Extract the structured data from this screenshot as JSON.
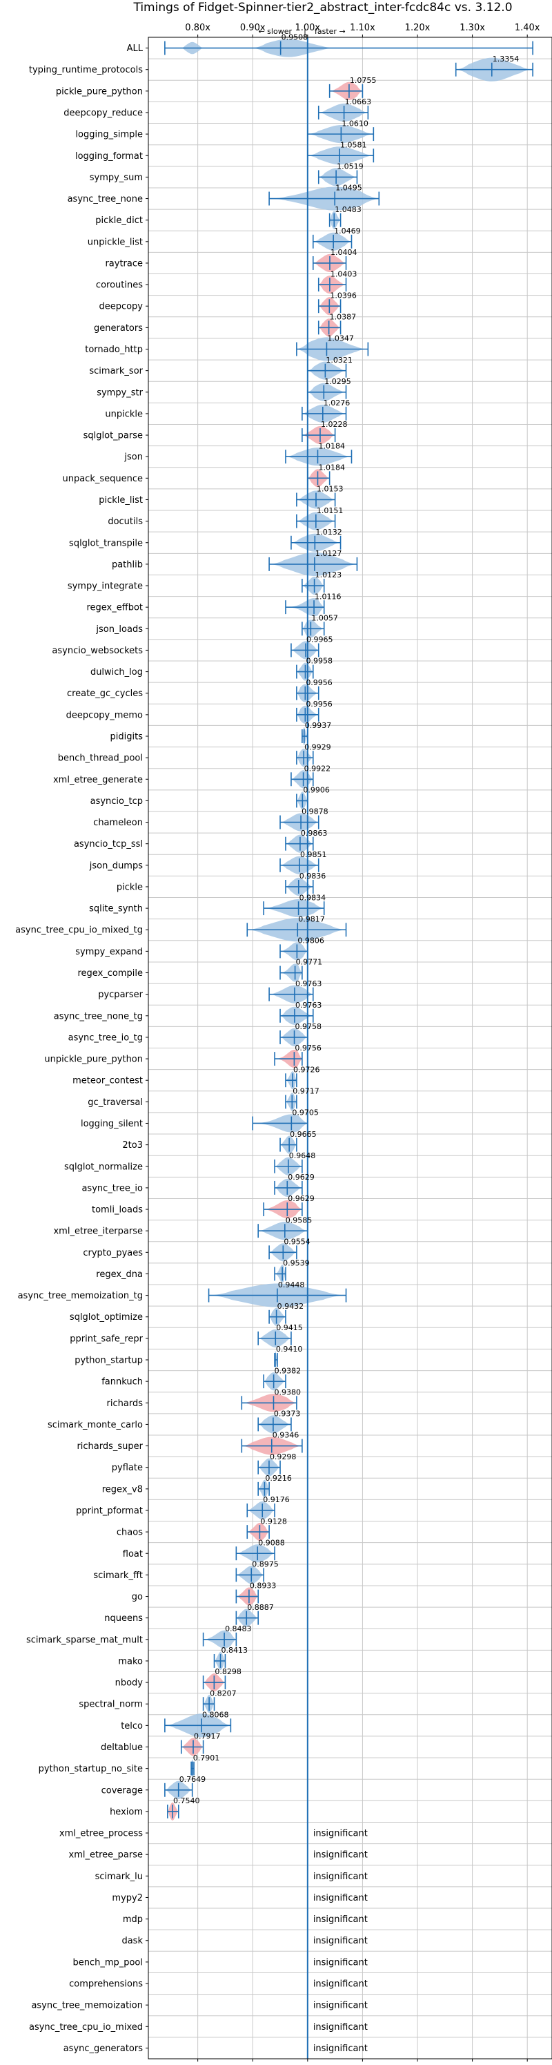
{
  "chart_data": {
    "type": "violin",
    "title": "Timings of Fidget-Spinner-tier2_abstract_inter-fcdc84c vs. 3.12.0",
    "direction_note": {
      "left": "← slower",
      "sep": "|",
      "right": "faster →"
    },
    "x_ticks": [
      "0.80x",
      "0.90x",
      "1.00x",
      "1.10x",
      "1.20x",
      "1.30x",
      "1.40x"
    ],
    "x_tick_values": [
      0.8,
      0.9,
      1.0,
      1.1,
      1.2,
      1.3,
      1.4
    ],
    "xlim": [
      0.71,
      1.445
    ],
    "reference_line": 1.0,
    "grid": true,
    "insignificant_label": "insignificant",
    "colors": {
      "faster": "#a4c5e4",
      "slower": "#f2a8ad",
      "accent": "#1f6fb5",
      "grid": "#c8c8c8"
    },
    "benchmarks": [
      {
        "name": "ALL",
        "value": 0.9508,
        "lo": 0.74,
        "hi": 1.41,
        "sig": "f",
        "shape": "all"
      },
      {
        "name": "typing_runtime_protocols",
        "value": 1.3354,
        "lo": 1.27,
        "hi": 1.41,
        "sig": "f",
        "shape": "wide"
      },
      {
        "name": "pickle_pure_python",
        "value": 1.0755,
        "lo": 1.04,
        "hi": 1.1,
        "sig": "s"
      },
      {
        "name": "deepcopy_reduce",
        "value": 1.0663,
        "lo": 1.02,
        "hi": 1.11,
        "sig": "f"
      },
      {
        "name": "logging_simple",
        "value": 1.061,
        "lo": 1.0,
        "hi": 1.12,
        "sig": "f"
      },
      {
        "name": "logging_format",
        "value": 1.0581,
        "lo": 1.0,
        "hi": 1.12,
        "sig": "f"
      },
      {
        "name": "sympy_sum",
        "value": 1.0519,
        "lo": 1.02,
        "hi": 1.09,
        "sig": "f"
      },
      {
        "name": "async_tree_none",
        "value": 1.0495,
        "lo": 0.93,
        "hi": 1.13,
        "sig": "f",
        "shape": "wide"
      },
      {
        "name": "pickle_dict",
        "value": 1.0483,
        "lo": 1.04,
        "hi": 1.06,
        "sig": "f"
      },
      {
        "name": "unpickle_list",
        "value": 1.0469,
        "lo": 1.01,
        "hi": 1.08,
        "sig": "f"
      },
      {
        "name": "raytrace",
        "value": 1.0404,
        "lo": 1.01,
        "hi": 1.07,
        "sig": "s"
      },
      {
        "name": "coroutines",
        "value": 1.0403,
        "lo": 1.02,
        "hi": 1.07,
        "sig": "s"
      },
      {
        "name": "deepcopy",
        "value": 1.0396,
        "lo": 1.02,
        "hi": 1.06,
        "sig": "s"
      },
      {
        "name": "generators",
        "value": 1.0387,
        "lo": 1.02,
        "hi": 1.06,
        "sig": "s"
      },
      {
        "name": "tornado_http",
        "value": 1.0347,
        "lo": 0.98,
        "hi": 1.11,
        "sig": "f",
        "shape": "wide"
      },
      {
        "name": "scimark_sor",
        "value": 1.0321,
        "lo": 1.0,
        "hi": 1.07,
        "sig": "f"
      },
      {
        "name": "sympy_str",
        "value": 1.0295,
        "lo": 1.0,
        "hi": 1.07,
        "sig": "f"
      },
      {
        "name": "unpickle",
        "value": 1.0276,
        "lo": 0.99,
        "hi": 1.07,
        "sig": "f"
      },
      {
        "name": "sqlglot_parse",
        "value": 1.0228,
        "lo": 0.99,
        "hi": 1.05,
        "sig": "s"
      },
      {
        "name": "json",
        "value": 1.0184,
        "lo": 0.96,
        "hi": 1.08,
        "sig": "f"
      },
      {
        "name": "unpack_sequence",
        "value": 1.0184,
        "lo": 1.0,
        "hi": 1.04,
        "sig": "s"
      },
      {
        "name": "pickle_list",
        "value": 1.0153,
        "lo": 0.98,
        "hi": 1.05,
        "sig": "f"
      },
      {
        "name": "docutils",
        "value": 1.0151,
        "lo": 0.98,
        "hi": 1.05,
        "sig": "f"
      },
      {
        "name": "sqlglot_transpile",
        "value": 1.0132,
        "lo": 0.97,
        "hi": 1.06,
        "sig": "f"
      },
      {
        "name": "pathlib",
        "value": 1.0127,
        "lo": 0.93,
        "hi": 1.09,
        "sig": "f",
        "shape": "wide"
      },
      {
        "name": "sympy_integrate",
        "value": 1.0123,
        "lo": 0.99,
        "hi": 1.03,
        "sig": "f"
      },
      {
        "name": "regex_effbot",
        "value": 1.0116,
        "lo": 0.96,
        "hi": 1.03,
        "sig": "f"
      },
      {
        "name": "json_loads",
        "value": 1.0057,
        "lo": 0.99,
        "hi": 1.03,
        "sig": "f"
      },
      {
        "name": "asyncio_websockets",
        "value": 0.9965,
        "lo": 0.97,
        "hi": 1.02,
        "sig": "f"
      },
      {
        "name": "dulwich_log",
        "value": 0.9958,
        "lo": 0.98,
        "hi": 1.01,
        "sig": "f"
      },
      {
        "name": "create_gc_cycles",
        "value": 0.9956,
        "lo": 0.98,
        "hi": 1.02,
        "sig": "f"
      },
      {
        "name": "deepcopy_memo",
        "value": 0.9956,
        "lo": 0.98,
        "hi": 1.02,
        "sig": "f"
      },
      {
        "name": "pidigits",
        "value": 0.9937,
        "lo": 0.99,
        "hi": 1.0,
        "sig": "f"
      },
      {
        "name": "bench_thread_pool",
        "value": 0.9929,
        "lo": 0.98,
        "hi": 1.01,
        "sig": "f"
      },
      {
        "name": "xml_etree_generate",
        "value": 0.9922,
        "lo": 0.97,
        "hi": 1.01,
        "sig": "f"
      },
      {
        "name": "asyncio_tcp",
        "value": 0.9906,
        "lo": 0.98,
        "hi": 1.0,
        "sig": "f"
      },
      {
        "name": "chameleon",
        "value": 0.9878,
        "lo": 0.95,
        "hi": 1.02,
        "sig": "f"
      },
      {
        "name": "asyncio_tcp_ssl",
        "value": 0.9863,
        "lo": 0.96,
        "hi": 1.01,
        "sig": "f"
      },
      {
        "name": "json_dumps",
        "value": 0.9851,
        "lo": 0.95,
        "hi": 1.02,
        "sig": "f"
      },
      {
        "name": "pickle",
        "value": 0.9836,
        "lo": 0.96,
        "hi": 1.01,
        "sig": "f"
      },
      {
        "name": "sqlite_synth",
        "value": 0.9834,
        "lo": 0.92,
        "hi": 1.03,
        "sig": "f"
      },
      {
        "name": "async_tree_cpu_io_mixed_tg",
        "value": 0.9817,
        "lo": 0.89,
        "hi": 1.07,
        "sig": "f",
        "shape": "wide"
      },
      {
        "name": "sympy_expand",
        "value": 0.9806,
        "lo": 0.95,
        "hi": 1.0,
        "sig": "f"
      },
      {
        "name": "regex_compile",
        "value": 0.9771,
        "lo": 0.95,
        "hi": 0.99,
        "sig": "f"
      },
      {
        "name": "pycparser",
        "value": 0.9763,
        "lo": 0.93,
        "hi": 1.01,
        "sig": "f"
      },
      {
        "name": "async_tree_none_tg",
        "value": 0.9763,
        "lo": 0.95,
        "hi": 1.01,
        "sig": "f"
      },
      {
        "name": "async_tree_io_tg",
        "value": 0.9758,
        "lo": 0.95,
        "hi": 1.0,
        "sig": "f"
      },
      {
        "name": "unpickle_pure_python",
        "value": 0.9756,
        "lo": 0.94,
        "hi": 0.99,
        "sig": "s"
      },
      {
        "name": "meteor_contest",
        "value": 0.9726,
        "lo": 0.96,
        "hi": 0.98,
        "sig": "f"
      },
      {
        "name": "gc_traversal",
        "value": 0.9717,
        "lo": 0.96,
        "hi": 0.98,
        "sig": "f"
      },
      {
        "name": "logging_silent",
        "value": 0.9705,
        "lo": 0.9,
        "hi": 1.0,
        "sig": "f"
      },
      {
        "name": "2to3",
        "value": 0.9665,
        "lo": 0.95,
        "hi": 0.98,
        "sig": "f"
      },
      {
        "name": "sqlglot_normalize",
        "value": 0.9648,
        "lo": 0.94,
        "hi": 0.99,
        "sig": "f"
      },
      {
        "name": "async_tree_io",
        "value": 0.9629,
        "lo": 0.94,
        "hi": 0.99,
        "sig": "f"
      },
      {
        "name": "tomli_loads",
        "value": 0.9629,
        "lo": 0.92,
        "hi": 0.99,
        "sig": "s"
      },
      {
        "name": "xml_etree_iterparse",
        "value": 0.9585,
        "lo": 0.91,
        "hi": 1.0,
        "sig": "f"
      },
      {
        "name": "crypto_pyaes",
        "value": 0.9554,
        "lo": 0.93,
        "hi": 0.98,
        "sig": "f"
      },
      {
        "name": "regex_dna",
        "value": 0.9539,
        "lo": 0.94,
        "hi": 0.96,
        "sig": "f"
      },
      {
        "name": "async_tree_memoization_tg",
        "value": 0.9448,
        "lo": 0.82,
        "hi": 1.07,
        "sig": "f",
        "shape": "wide"
      },
      {
        "name": "sqlglot_optimize",
        "value": 0.9432,
        "lo": 0.93,
        "hi": 0.96,
        "sig": "f"
      },
      {
        "name": "pprint_safe_repr",
        "value": 0.9415,
        "lo": 0.91,
        "hi": 0.97,
        "sig": "f"
      },
      {
        "name": "python_startup",
        "value": 0.941,
        "lo": 0.94,
        "hi": 0.945,
        "sig": "f"
      },
      {
        "name": "fannkuch",
        "value": 0.9382,
        "lo": 0.92,
        "hi": 0.96,
        "sig": "f"
      },
      {
        "name": "richards",
        "value": 0.938,
        "lo": 0.88,
        "hi": 0.98,
        "sig": "s"
      },
      {
        "name": "scimark_monte_carlo",
        "value": 0.9373,
        "lo": 0.91,
        "hi": 0.97,
        "sig": "f"
      },
      {
        "name": "richards_super",
        "value": 0.9346,
        "lo": 0.88,
        "hi": 0.99,
        "sig": "s"
      },
      {
        "name": "pyflate",
        "value": 0.9298,
        "lo": 0.91,
        "hi": 0.95,
        "sig": "f"
      },
      {
        "name": "regex_v8",
        "value": 0.9216,
        "lo": 0.91,
        "hi": 0.93,
        "sig": "f"
      },
      {
        "name": "pprint_pformat",
        "value": 0.9176,
        "lo": 0.89,
        "hi": 0.94,
        "sig": "f"
      },
      {
        "name": "chaos",
        "value": 0.9128,
        "lo": 0.89,
        "hi": 0.93,
        "sig": "s"
      },
      {
        "name": "float",
        "value": 0.9088,
        "lo": 0.87,
        "hi": 0.94,
        "sig": "f"
      },
      {
        "name": "scimark_fft",
        "value": 0.8975,
        "lo": 0.87,
        "hi": 0.92,
        "sig": "f"
      },
      {
        "name": "go",
        "value": 0.8933,
        "lo": 0.87,
        "hi": 0.91,
        "sig": "s"
      },
      {
        "name": "nqueens",
        "value": 0.8887,
        "lo": 0.87,
        "hi": 0.91,
        "sig": "f"
      },
      {
        "name": "scimark_sparse_mat_mult",
        "value": 0.8483,
        "lo": 0.81,
        "hi": 0.87,
        "sig": "f"
      },
      {
        "name": "mako",
        "value": 0.8413,
        "lo": 0.83,
        "hi": 0.85,
        "sig": "f"
      },
      {
        "name": "nbody",
        "value": 0.8298,
        "lo": 0.81,
        "hi": 0.85,
        "sig": "s"
      },
      {
        "name": "spectral_norm",
        "value": 0.8207,
        "lo": 0.81,
        "hi": 0.83,
        "sig": "f"
      },
      {
        "name": "telco",
        "value": 0.8068,
        "lo": 0.74,
        "hi": 0.86,
        "sig": "f",
        "shape": "wide"
      },
      {
        "name": "deltablue",
        "value": 0.7917,
        "lo": 0.77,
        "hi": 0.81,
        "sig": "s"
      },
      {
        "name": "python_startup_no_site",
        "value": 0.7901,
        "lo": 0.788,
        "hi": 0.793,
        "sig": "f"
      },
      {
        "name": "coverage",
        "value": 0.7649,
        "lo": 0.74,
        "hi": 0.79,
        "sig": "f"
      },
      {
        "name": "hexiom",
        "value": 0.754,
        "lo": 0.745,
        "hi": 0.765,
        "sig": "s"
      },
      {
        "name": "xml_etree_process",
        "sig": "i"
      },
      {
        "name": "xml_etree_parse",
        "sig": "i"
      },
      {
        "name": "scimark_lu",
        "sig": "i"
      },
      {
        "name": "mypy2",
        "sig": "i"
      },
      {
        "name": "mdp",
        "sig": "i"
      },
      {
        "name": "dask",
        "sig": "i"
      },
      {
        "name": "bench_mp_pool",
        "sig": "i"
      },
      {
        "name": "comprehensions",
        "sig": "i"
      },
      {
        "name": "async_tree_memoization",
        "sig": "i"
      },
      {
        "name": "async_tree_cpu_io_mixed",
        "sig": "i"
      },
      {
        "name": "async_generators",
        "sig": "i"
      }
    ]
  }
}
